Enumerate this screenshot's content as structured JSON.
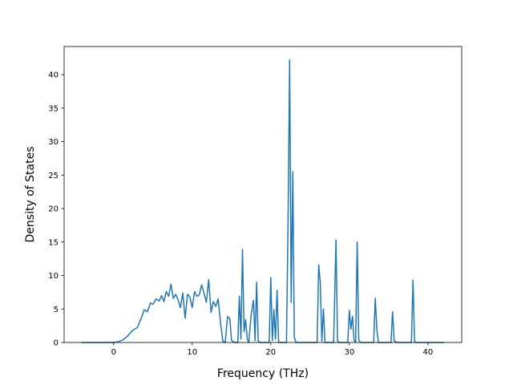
{
  "chart_data": {
    "type": "line",
    "title": "",
    "xlabel": "Frequency (THz)",
    "ylabel": "Density of States",
    "xlim": [
      -6.3,
      44.3
    ],
    "ylim": [
      0,
      44.2
    ],
    "xticks": [
      0,
      10,
      20,
      30,
      40
    ],
    "yticks": [
      0,
      5,
      10,
      15,
      20,
      25,
      30,
      35,
      40
    ],
    "xtick_labels": [
      "0",
      "10",
      "20",
      "30",
      "40"
    ],
    "ytick_labels": [
      "0",
      "5",
      "10",
      "15",
      "20",
      "25",
      "30",
      "35",
      "40"
    ],
    "grid": false,
    "legend": "none",
    "series": [
      {
        "color": "#1f77b4",
        "x": [
          -4.0,
          -2.0,
          0.0,
          0.6,
          1.2,
          1.8,
          2.4,
          3.0,
          3.5,
          3.9,
          4.3,
          4.7,
          5.0,
          5.4,
          5.8,
          6.1,
          6.4,
          6.7,
          7.0,
          7.3,
          7.6,
          7.9,
          8.2,
          8.5,
          8.8,
          9.1,
          9.4,
          9.7,
          10.0,
          10.3,
          10.6,
          10.9,
          11.2,
          11.5,
          11.8,
          12.1,
          12.4,
          12.7,
          13.0,
          13.3,
          13.6,
          13.9,
          14.2,
          14.5,
          14.8,
          15.0,
          15.4,
          15.8,
          16.0,
          16.2,
          16.4,
          16.6,
          16.8,
          17.0,
          17.2,
          17.5,
          17.8,
          18.0,
          18.2,
          18.4,
          18.6,
          19.0,
          19.4,
          19.8,
          20.0,
          20.2,
          20.4,
          20.6,
          20.8,
          21.0,
          21.2,
          21.4,
          21.6,
          22.0,
          22.2,
          22.4,
          22.6,
          22.8,
          23.0,
          23.2,
          23.4,
          24.0,
          25.0,
          25.6,
          25.9,
          26.1,
          26.3,
          26.5,
          26.7,
          26.9,
          27.2,
          27.6,
          28.0,
          28.3,
          28.5,
          28.7,
          29.0,
          29.5,
          29.8,
          30.0,
          30.2,
          30.4,
          30.6,
          30.8,
          31.0,
          31.2,
          31.4,
          32.0,
          32.8,
          33.1,
          33.3,
          33.5,
          33.7,
          34.0,
          34.5,
          35.0,
          35.3,
          35.5,
          35.7,
          36.0,
          36.5,
          37.0,
          37.5,
          37.9,
          38.1,
          38.3,
          38.5,
          39.0,
          40.0,
          41.0,
          42.0
        ],
        "y": [
          0,
          0,
          0,
          0.1,
          0.4,
          1.0,
          1.8,
          2.2,
          3.6,
          4.9,
          4.6,
          5.9,
          5.7,
          6.5,
          6.2,
          7.0,
          6.1,
          7.6,
          6.9,
          8.7,
          6.6,
          7.2,
          6.4,
          5.2,
          7.4,
          3.6,
          7.2,
          6.8,
          5.2,
          7.6,
          6.9,
          7.1,
          8.6,
          7.4,
          6.0,
          9.4,
          4.5,
          6.1,
          5.4,
          6.5,
          3.0,
          0.2,
          0,
          3.9,
          3.5,
          0.3,
          0,
          0,
          6.9,
          0.5,
          13.9,
          1.6,
          3.4,
          0.5,
          0,
          4.1,
          6.3,
          0.3,
          9.0,
          0.2,
          0,
          0,
          0,
          0,
          9.7,
          0.3,
          4.9,
          0.5,
          7.8,
          0,
          0,
          0,
          0,
          0,
          18.0,
          42.2,
          6.0,
          25.5,
          0.8,
          0,
          0,
          0,
          0,
          0,
          0,
          11.6,
          9.0,
          0.2,
          5.0,
          0,
          0,
          0,
          0,
          15.3,
          0.2,
          0,
          0,
          0,
          0,
          4.8,
          2.0,
          3.9,
          0.3,
          0,
          15.0,
          0.4,
          0,
          0,
          0,
          0,
          6.6,
          2.0,
          0,
          0,
          0,
          0,
          0,
          4.6,
          0.3,
          0,
          0,
          0,
          0,
          0,
          9.3,
          0.2,
          0,
          0,
          0,
          0,
          0
        ]
      }
    ]
  }
}
